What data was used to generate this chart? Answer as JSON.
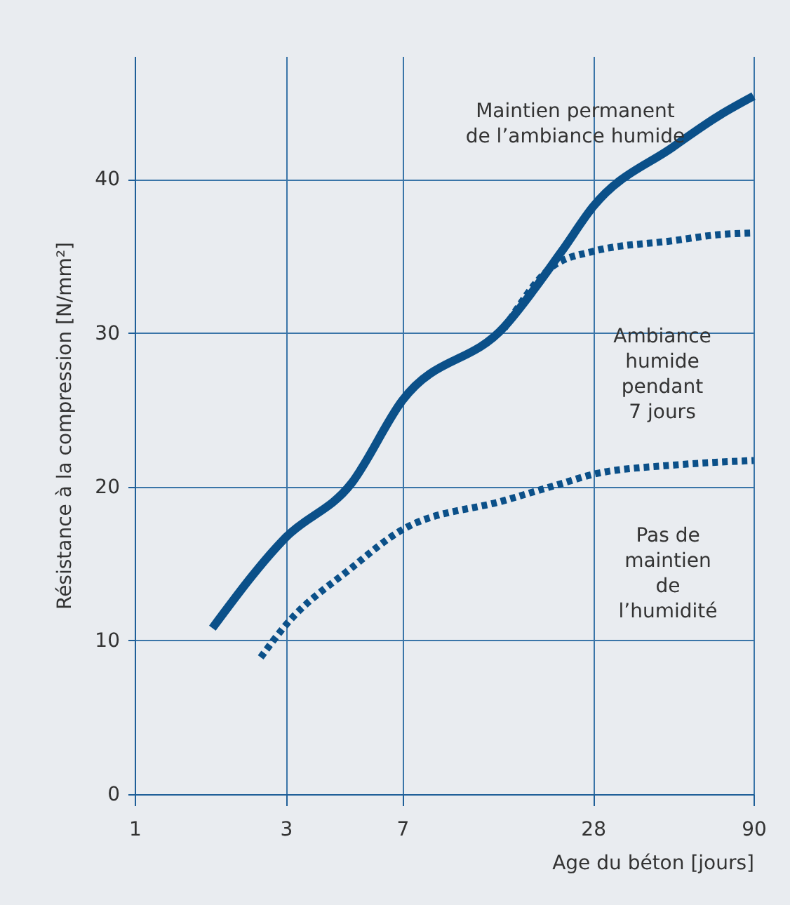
{
  "chart_data": {
    "type": "line",
    "xlabel": "Age du béton [jours]",
    "ylabel": "Résistance à la compression [N/mm²]",
    "xlim": [
      1,
      90
    ],
    "xticks": [
      1,
      3,
      7,
      28,
      90
    ],
    "ylim": [
      0,
      48
    ],
    "yticks": [
      0,
      10,
      20,
      30,
      40
    ],
    "grid": true,
    "marker": "none",
    "log": "x",
    "series": [
      {
        "color": "#0b5089",
        "line_style": "solid",
        "x": [
          1.76,
          3,
          4.83,
          7,
          14.7,
          22.3,
          28,
          50.2,
          70.9,
          90
        ],
        "values": [
          10.8,
          16.7,
          20.2,
          25.6,
          30.4,
          35.3,
          38.2,
          42.1,
          44.2,
          45.4
        ]
      },
      {
        "color": "#0b5089",
        "line_style": "dotted",
        "x": [
          14.7,
          20.8,
          28,
          50.2,
          70.9,
          90
        ],
        "values": [
          30.3,
          34.3,
          35.3,
          36.0,
          36.4,
          36.5
        ]
      },
      {
        "color": "#0b5089",
        "line_style": "dotted",
        "x": [
          2.5,
          3,
          4.83,
          7,
          14.7,
          22.3,
          28,
          50.2,
          70.9,
          90
        ],
        "values": [
          8.9,
          11.0,
          14.7,
          17.2,
          19.1,
          20.2,
          20.8,
          21.4,
          21.6,
          21.7
        ]
      }
    ],
    "annotations": [
      "Maintien permanent\nde l’ambiance humide",
      "Ambiance\nhumide\npendant\n7 jours",
      "Pas de\nmaintien\nde\nl’humidité"
    ]
  }
}
